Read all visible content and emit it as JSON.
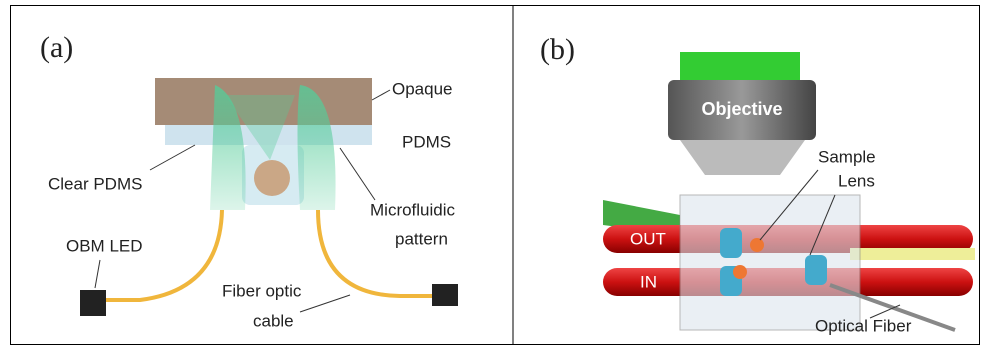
{
  "panels": [
    {
      "label": "(a)",
      "annotations": [
        "Opaque",
        "PDMS",
        "Clear PDMS",
        "Microfluidic",
        "pattern",
        "OBM LED",
        "Fiber optic",
        "cable"
      ]
    },
    {
      "label": "(b)",
      "annotations": [
        "Objective",
        "Sample",
        "Lens",
        "OUT",
        "IN",
        "Optical Fiber"
      ]
    }
  ]
}
